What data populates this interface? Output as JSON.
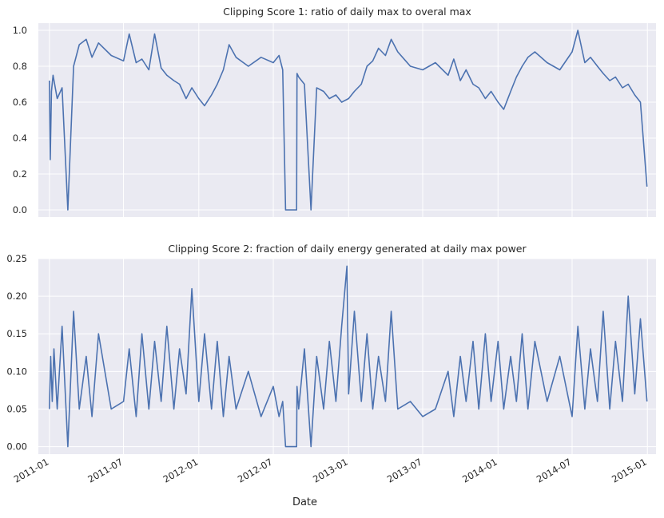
{
  "figure": {
    "xlabel": "Date",
    "x_tick_labels": [
      "2011-01",
      "2011-07",
      "2012-01",
      "2012-07",
      "2013-01",
      "2013-07",
      "2014-01",
      "2014-07",
      "2015-01"
    ],
    "line_color": "#4c72b0",
    "background_color": "#eaeaf2",
    "grid_color": "#ffffff"
  },
  "chart_data": [
    {
      "type": "line",
      "title": "Clipping Score 1: ratio of daily max to overal max",
      "xlabel": "",
      "ylabel": "",
      "x_range": [
        "2010-12-05",
        "2015-01-22"
      ],
      "ylim": [
        -0.04,
        1.04
      ],
      "y_ticks": [
        0.0,
        0.2,
        0.4,
        0.6,
        0.8,
        1.0
      ],
      "y_tick_labels": [
        "0.0",
        "0.2",
        "0.4",
        "0.6",
        "0.8",
        "1.0"
      ],
      "grid": true,
      "series": [
        {
          "x": [
            "2011-01-01",
            "2011-01-03",
            "2011-01-06",
            "2011-01-10",
            "2011-01-20",
            "2011-02-01",
            "2011-02-15",
            "2011-03-01",
            "2011-03-15",
            "2011-04-01",
            "2011-04-15",
            "2011-05-01",
            "2011-06-01",
            "2011-07-01",
            "2011-07-15",
            "2011-08-01",
            "2011-08-15",
            "2011-09-01",
            "2011-09-15",
            "2011-10-01",
            "2011-10-15",
            "2011-11-01",
            "2011-11-15",
            "2011-12-01",
            "2011-12-15",
            "2012-01-01",
            "2012-01-15",
            "2012-02-01",
            "2012-02-15",
            "2012-03-01",
            "2012-03-15",
            "2012-04-01",
            "2012-05-01",
            "2012-06-01",
            "2012-07-01",
            "2012-07-15",
            "2012-07-24",
            "2012-07-31",
            "2012-08-27",
            "2012-08-28",
            "2012-09-01",
            "2012-09-15",
            "2012-10-01",
            "2012-10-15",
            "2012-11-01",
            "2012-11-15",
            "2012-12-01",
            "2012-12-15",
            "2013-01-01",
            "2013-01-15",
            "2013-02-01",
            "2013-02-15",
            "2013-03-01",
            "2013-03-15",
            "2013-04-01",
            "2013-04-15",
            "2013-05-01",
            "2013-06-01",
            "2013-07-01",
            "2013-08-01",
            "2013-09-01",
            "2013-09-15",
            "2013-10-01",
            "2013-10-15",
            "2013-11-01",
            "2013-11-15",
            "2013-12-01",
            "2013-12-15",
            "2014-01-01",
            "2014-01-15",
            "2014-02-01",
            "2014-02-15",
            "2014-03-01",
            "2014-03-15",
            "2014-04-01",
            "2014-05-01",
            "2014-06-01",
            "2014-07-01",
            "2014-07-15",
            "2014-08-01",
            "2014-08-15",
            "2014-09-01",
            "2014-09-15",
            "2014-10-01",
            "2014-10-15",
            "2014-11-01",
            "2014-11-15",
            "2014-12-01",
            "2014-12-15",
            "2014-12-31"
          ],
          "values": [
            0.72,
            0.28,
            0.66,
            0.75,
            0.62,
            0.68,
            0.0,
            0.8,
            0.92,
            0.95,
            0.85,
            0.93,
            0.86,
            0.83,
            0.98,
            0.82,
            0.84,
            0.78,
            0.98,
            0.79,
            0.75,
            0.72,
            0.7,
            0.62,
            0.68,
            0.62,
            0.58,
            0.64,
            0.7,
            0.78,
            0.92,
            0.85,
            0.8,
            0.85,
            0.82,
            0.86,
            0.78,
            0.0,
            0.0,
            0.76,
            0.74,
            0.7,
            0.0,
            0.68,
            0.66,
            0.62,
            0.64,
            0.6,
            0.62,
            0.66,
            0.7,
            0.8,
            0.83,
            0.9,
            0.86,
            0.95,
            0.88,
            0.8,
            0.78,
            0.82,
            0.75,
            0.84,
            0.72,
            0.78,
            0.7,
            0.68,
            0.62,
            0.66,
            0.6,
            0.56,
            0.66,
            0.74,
            0.8,
            0.85,
            0.88,
            0.82,
            0.78,
            0.88,
            1.0,
            0.82,
            0.85,
            0.8,
            0.76,
            0.72,
            0.74,
            0.68,
            0.7,
            0.64,
            0.6,
            0.13
          ]
        }
      ]
    },
    {
      "type": "line",
      "title": "Clipping Score 2: fraction of daily energy generated at daily max power",
      "xlabel": "Date",
      "ylabel": "",
      "x_range": [
        "2010-12-05",
        "2015-01-22"
      ],
      "ylim": [
        -0.01,
        0.25
      ],
      "y_ticks": [
        0.0,
        0.05,
        0.1,
        0.15,
        0.2,
        0.25
      ],
      "y_tick_labels": [
        "0.00",
        "0.05",
        "0.10",
        "0.15",
        "0.20",
        "0.25"
      ],
      "grid": true,
      "series": [
        {
          "x": [
            "2011-01-01",
            "2011-01-04",
            "2011-01-08",
            "2011-01-12",
            "2011-01-20",
            "2011-02-01",
            "2011-02-15",
            "2011-03-01",
            "2011-03-15",
            "2011-04-01",
            "2011-04-15",
            "2011-05-01",
            "2011-06-01",
            "2011-07-01",
            "2011-07-15",
            "2011-08-01",
            "2011-08-15",
            "2011-09-01",
            "2011-09-15",
            "2011-10-01",
            "2011-10-15",
            "2011-11-01",
            "2011-11-15",
            "2011-12-01",
            "2011-12-15",
            "2012-01-01",
            "2012-01-15",
            "2012-02-01",
            "2012-02-15",
            "2012-03-01",
            "2012-03-15",
            "2012-04-01",
            "2012-05-01",
            "2012-06-01",
            "2012-07-01",
            "2012-07-15",
            "2012-07-24",
            "2012-07-31",
            "2012-08-27",
            "2012-08-28",
            "2012-09-01",
            "2012-09-15",
            "2012-10-01",
            "2012-10-15",
            "2012-11-01",
            "2012-11-15",
            "2012-12-01",
            "2012-12-15",
            "2012-12-28",
            "2013-01-01",
            "2013-01-15",
            "2013-02-01",
            "2013-02-15",
            "2013-03-01",
            "2013-03-15",
            "2013-04-01",
            "2013-04-15",
            "2013-05-01",
            "2013-06-01",
            "2013-07-01",
            "2013-08-01",
            "2013-09-01",
            "2013-09-15",
            "2013-10-01",
            "2013-10-15",
            "2013-11-01",
            "2013-11-15",
            "2013-12-01",
            "2013-12-15",
            "2014-01-01",
            "2014-01-15",
            "2014-02-01",
            "2014-02-15",
            "2014-03-01",
            "2014-03-15",
            "2014-04-01",
            "2014-05-01",
            "2014-06-01",
            "2014-07-01",
            "2014-07-15",
            "2014-08-01",
            "2014-08-15",
            "2014-09-01",
            "2014-09-15",
            "2014-10-01",
            "2014-10-15",
            "2014-11-01",
            "2014-11-15",
            "2014-12-01",
            "2014-12-15",
            "2014-12-31"
          ],
          "values": [
            0.05,
            0.12,
            0.06,
            0.13,
            0.05,
            0.16,
            0.0,
            0.18,
            0.05,
            0.12,
            0.04,
            0.15,
            0.05,
            0.06,
            0.13,
            0.04,
            0.15,
            0.05,
            0.14,
            0.06,
            0.16,
            0.05,
            0.13,
            0.07,
            0.21,
            0.06,
            0.15,
            0.05,
            0.14,
            0.04,
            0.12,
            0.05,
            0.1,
            0.04,
            0.08,
            0.04,
            0.06,
            0.0,
            0.0,
            0.08,
            0.05,
            0.13,
            0.0,
            0.12,
            0.05,
            0.14,
            0.06,
            0.16,
            0.24,
            0.07,
            0.18,
            0.06,
            0.15,
            0.05,
            0.12,
            0.06,
            0.18,
            0.05,
            0.06,
            0.04,
            0.05,
            0.1,
            0.04,
            0.12,
            0.06,
            0.14,
            0.05,
            0.15,
            0.06,
            0.14,
            0.05,
            0.12,
            0.06,
            0.15,
            0.05,
            0.14,
            0.06,
            0.12,
            0.04,
            0.16,
            0.05,
            0.13,
            0.06,
            0.18,
            0.05,
            0.14,
            0.06,
            0.2,
            0.07,
            0.17,
            0.06
          ]
        }
      ]
    }
  ]
}
